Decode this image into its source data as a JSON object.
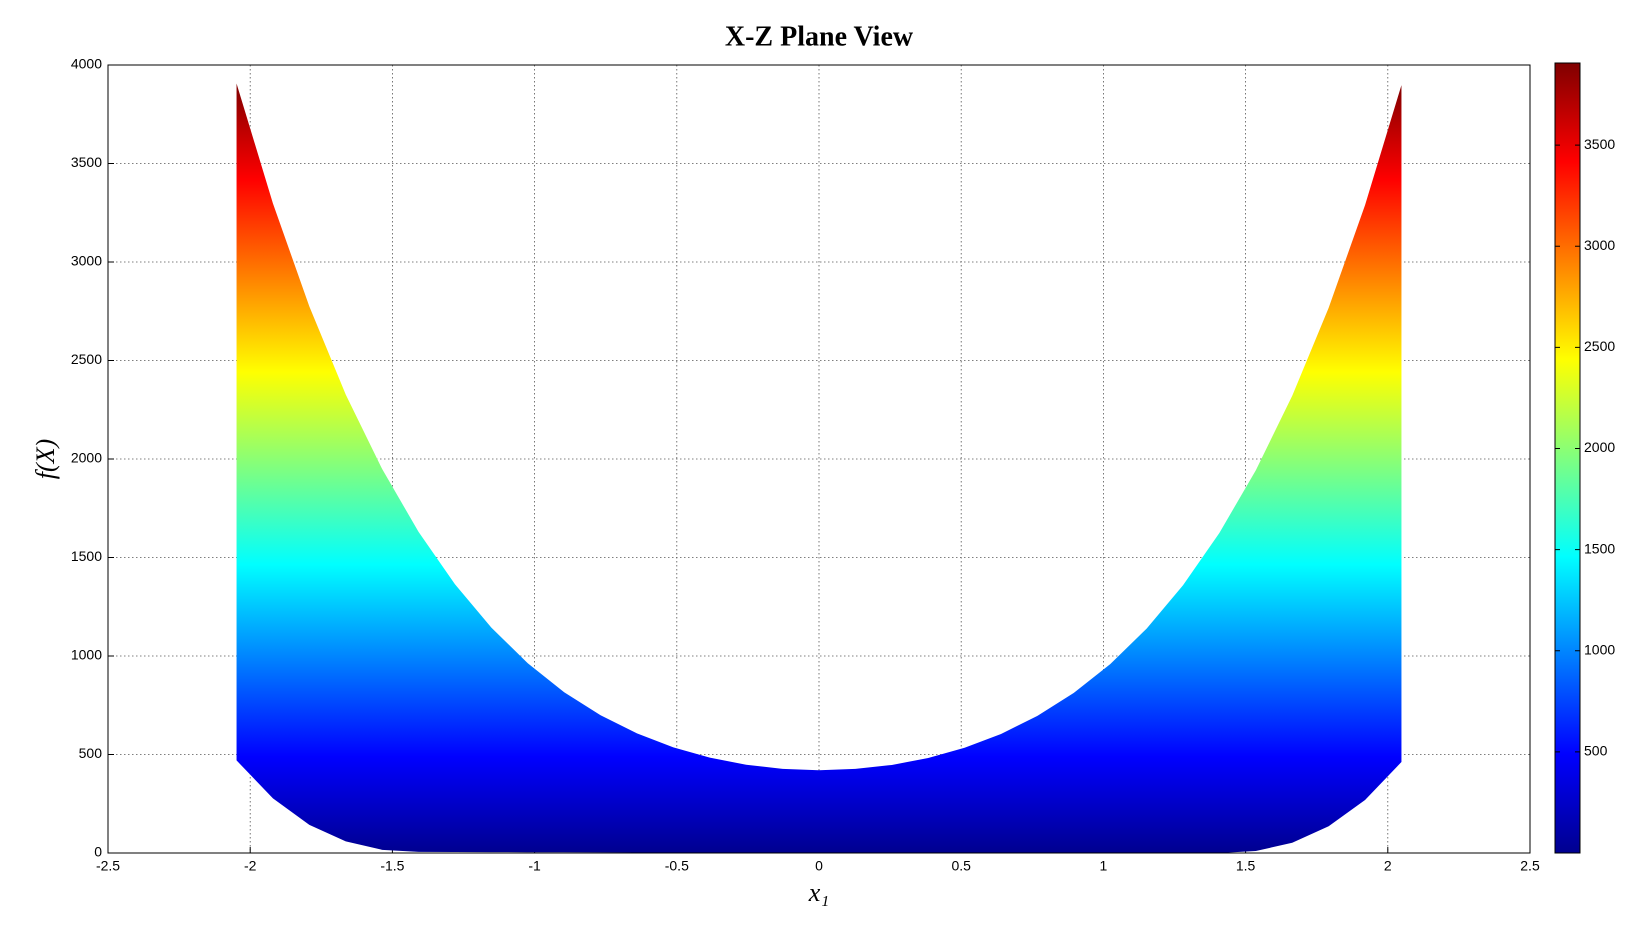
{
  "chart_data": {
    "type": "area-band",
    "title": "X-Z Plane View",
    "xlabel": "x₁",
    "ylabel": "f(X)",
    "x": [
      -2.048,
      -1.92,
      -1.792,
      -1.664,
      -1.536,
      -1.408,
      -1.28,
      -1.152,
      -1.024,
      -0.896,
      -0.768,
      -0.64,
      -0.512,
      -0.384,
      -0.256,
      -0.128,
      0,
      0.128,
      0.256,
      0.384,
      0.512,
      0.64,
      0.768,
      0.896,
      1.024,
      1.152,
      1.28,
      1.408,
      1.536,
      1.664,
      1.792,
      1.92,
      2.048
    ],
    "upper": [
      3906,
      3297,
      2774,
      2327,
      1949,
      1630,
      1364,
      1144,
      963,
      816,
      699,
      607,
      536,
      484,
      448,
      427,
      420,
      427,
      447,
      482,
      534,
      604,
      696,
      813,
      959,
      1139,
      1359,
      1625,
      1943,
      2321,
      2767,
      3289,
      3898
    ],
    "lower": [
      470,
      277,
      143,
      59,
      16,
      5.8,
      5.2,
      4.6,
      4.1,
      3.6,
      3.1,
      2.7,
      2.3,
      1.9,
      1.6,
      1.3,
      1,
      0.8,
      0.6,
      0.4,
      0.2,
      0.1,
      0.1,
      0,
      0,
      0,
      0.1,
      0.2,
      10,
      52,
      136,
      269,
      462
    ],
    "xlim": [
      -2.5,
      2.5
    ],
    "xticks": [
      -2.5,
      -2,
      -1.5,
      -1,
      -0.5,
      0,
      0.5,
      1,
      1.5,
      2,
      2.5
    ],
    "ylim": [
      0,
      4000
    ],
    "yticks": [
      0,
      500,
      1000,
      1500,
      2000,
      2500,
      3000,
      3500,
      4000
    ],
    "grid": true,
    "colorbar": {
      "colormap": "jet",
      "lim": [
        0,
        3906
      ],
      "ticks": [
        500,
        1000,
        1500,
        2000,
        2500,
        3000,
        3500
      ]
    }
  }
}
